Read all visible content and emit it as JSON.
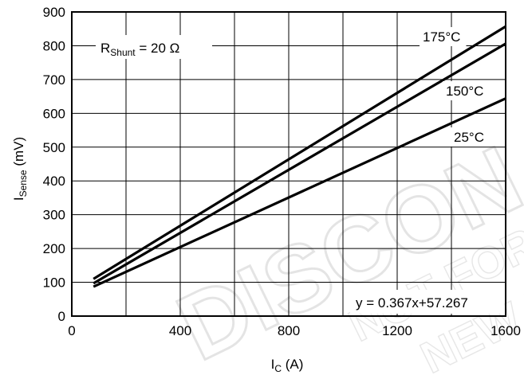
{
  "chart_data": {
    "type": "line",
    "xlabel_main": "I",
    "xlabel_sub": "C",
    "xlabel_unit": " (A)",
    "ylabel_main": "I",
    "ylabel_sub": "Sense",
    "ylabel_unit": " (mV)",
    "xlim": [
      0,
      1600
    ],
    "ylim": [
      0,
      900
    ],
    "x_ticks": [
      0,
      400,
      800,
      1200,
      1600
    ],
    "y_ticks": [
      0,
      100,
      200,
      300,
      400,
      500,
      600,
      700,
      800,
      900
    ],
    "grid": true,
    "series": [
      {
        "name": "175°C",
        "x": [
          80,
          1600
        ],
        "y": [
          110,
          857
        ]
      },
      {
        "name": "150°C",
        "x": [
          80,
          1600
        ],
        "y": [
          97,
          806
        ]
      },
      {
        "name": "25°C",
        "x": [
          80,
          1600
        ],
        "y": [
          87,
          644
        ]
      }
    ],
    "annotations": {
      "shunt_main": "R",
      "shunt_sub": "Shunt",
      "shunt_value": " = 20 Ω",
      "equation": "y = 0.367x+57.267"
    },
    "watermark": [
      "DISCON",
      "NOT FOR",
      "NEW DE"
    ],
    "colors": {
      "line": "#000000",
      "grid": "#000000",
      "background": "#ffffff"
    }
  }
}
